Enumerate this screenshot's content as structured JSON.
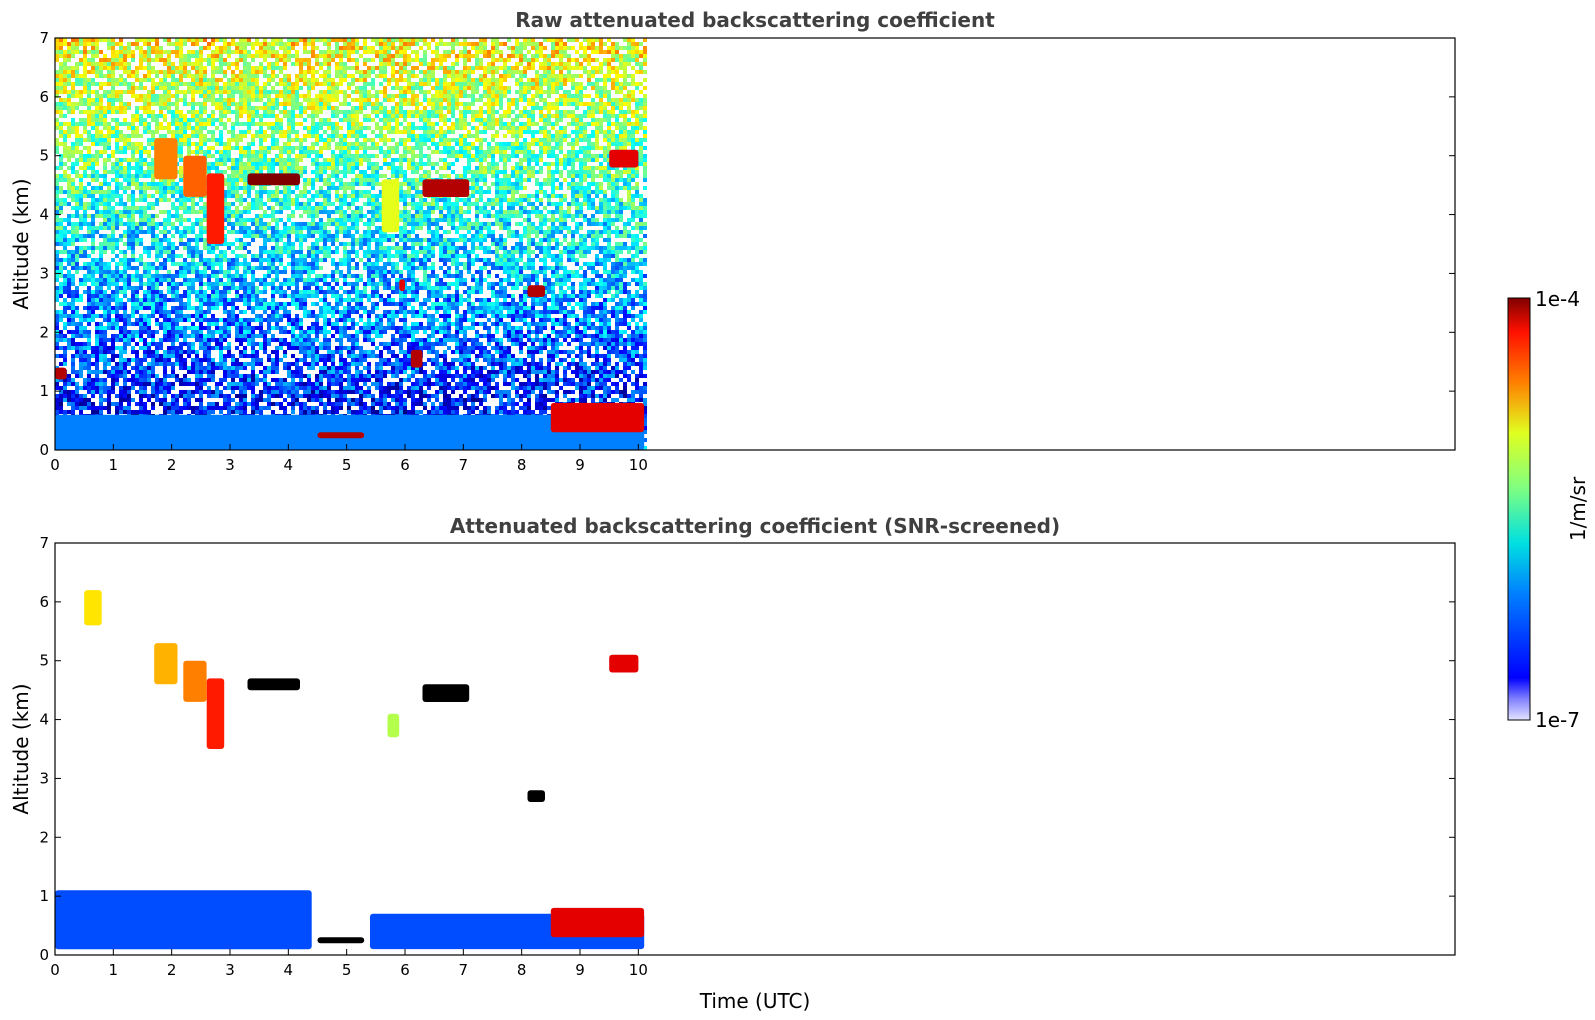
{
  "chart_data": [
    {
      "type": "heatmap",
      "title": "Raw attenuated backscattering coefficient",
      "ylabel": "Altitude (km)",
      "xlabel": "",
      "xlim": [
        0,
        24
      ],
      "ylim": [
        0,
        7
      ],
      "xticks": [
        "0",
        "1",
        "2",
        "3",
        "4",
        "5",
        "6",
        "7",
        "8",
        "9",
        "10"
      ],
      "yticks": [
        "0",
        "1",
        "2",
        "3",
        "4",
        "5",
        "6",
        "7"
      ],
      "data_extent_hours": [
        0,
        10.1
      ],
      "features": [
        {
          "kind": "boundary_layer",
          "x": [
            0,
            10.1
          ],
          "y": [
            0,
            0.6
          ],
          "level": 0.25
        },
        {
          "kind": "cloud",
          "x": [
            1.7,
            2.1
          ],
          "y": [
            4.6,
            5.3
          ],
          "level": 0.75
        },
        {
          "kind": "cloud",
          "x": [
            2.2,
            2.6
          ],
          "y": [
            4.3,
            5.0
          ],
          "level": 0.78
        },
        {
          "kind": "cloud",
          "x": [
            2.6,
            2.9
          ],
          "y": [
            3.5,
            4.7
          ],
          "level": 0.85
        },
        {
          "kind": "cloud",
          "x": [
            3.3,
            4.2
          ],
          "y": [
            4.5,
            4.7
          ],
          "level": 1.0
        },
        {
          "kind": "cloud",
          "x": [
            6.3,
            7.1
          ],
          "y": [
            4.3,
            4.6
          ],
          "level": 0.95
        },
        {
          "kind": "cloud",
          "x": [
            9.5,
            10.0
          ],
          "y": [
            4.8,
            5.1
          ],
          "level": 0.9
        },
        {
          "kind": "cloud",
          "x": [
            8.1,
            8.4
          ],
          "y": [
            2.6,
            2.8
          ],
          "level": 0.95
        },
        {
          "kind": "cloud",
          "x": [
            5.9,
            6.0
          ],
          "y": [
            2.7,
            2.9
          ],
          "level": 0.9
        },
        {
          "kind": "cloud",
          "x": [
            6.1,
            6.3
          ],
          "y": [
            1.4,
            1.7
          ],
          "level": 0.95
        },
        {
          "kind": "cloud",
          "x": [
            0.0,
            0.2
          ],
          "y": [
            1.2,
            1.4
          ],
          "level": 0.95
        },
        {
          "kind": "cloud",
          "x": [
            4.5,
            5.3
          ],
          "y": [
            0.2,
            0.3
          ],
          "level": 0.95
        },
        {
          "kind": "cloud",
          "x": [
            8.5,
            10.1
          ],
          "y": [
            0.3,
            0.8
          ],
          "level": 0.9
        },
        {
          "kind": "virga",
          "x": [
            5.6,
            5.9
          ],
          "y": [
            3.7,
            4.6
          ],
          "level": 0.6
        }
      ]
    },
    {
      "type": "heatmap",
      "title": "Attenuated backscattering coefficient (SNR-screened)",
      "ylabel": "Altitude (km)",
      "xlabel": "Time (UTC)",
      "xlim": [
        0,
        24
      ],
      "ylim": [
        0,
        7
      ],
      "xticks": [
        "0",
        "1",
        "2",
        "3",
        "4",
        "5",
        "6",
        "7",
        "8",
        "9",
        "10"
      ],
      "yticks": [
        "0",
        "1",
        "2",
        "3",
        "4",
        "5",
        "6",
        "7"
      ],
      "data_extent_hours": [
        0,
        10.1
      ],
      "features": [
        {
          "kind": "boundary_layer",
          "x": [
            0,
            4.4
          ],
          "y": [
            0.1,
            1.1
          ],
          "level": 0.2
        },
        {
          "kind": "boundary_layer",
          "x": [
            5.4,
            10.1
          ],
          "y": [
            0.1,
            0.7
          ],
          "level": 0.2
        },
        {
          "kind": "cloud",
          "x": [
            1.7,
            2.1
          ],
          "y": [
            4.6,
            5.3
          ],
          "level": 0.7
        },
        {
          "kind": "cloud",
          "x": [
            2.2,
            2.6
          ],
          "y": [
            4.3,
            5.0
          ],
          "level": 0.75
        },
        {
          "kind": "cloud",
          "x": [
            2.6,
            2.9
          ],
          "y": [
            3.5,
            4.7
          ],
          "level": 0.85
        },
        {
          "kind": "saturated",
          "x": [
            3.3,
            4.2
          ],
          "y": [
            4.5,
            4.7
          ]
        },
        {
          "kind": "saturated",
          "x": [
            6.3,
            7.1
          ],
          "y": [
            4.3,
            4.6
          ]
        },
        {
          "kind": "saturated",
          "x": [
            8.1,
            8.4
          ],
          "y": [
            2.6,
            2.8
          ]
        },
        {
          "kind": "saturated",
          "x": [
            4.5,
            5.3
          ],
          "y": [
            0.2,
            0.3
          ]
        },
        {
          "kind": "cloud",
          "x": [
            0.5,
            0.8
          ],
          "y": [
            5.6,
            6.2
          ],
          "level": 0.65
        },
        {
          "kind": "cloud",
          "x": [
            5.7,
            5.9
          ],
          "y": [
            3.7,
            4.1
          ],
          "level": 0.55
        },
        {
          "kind": "cloud",
          "x": [
            9.5,
            10.0
          ],
          "y": [
            4.8,
            5.1
          ],
          "level": 0.9
        },
        {
          "kind": "cloud",
          "x": [
            8.5,
            10.1
          ],
          "y": [
            0.3,
            0.8
          ],
          "level": 0.9
        }
      ]
    }
  ],
  "colorbar": {
    "label": "1/m/sr",
    "max_label": "1e-4",
    "min_label": "1e-7",
    "colormap": "jet",
    "scale": "log",
    "range": [
      1e-07,
      0.0001
    ]
  },
  "colors": {
    "title_text": "#404040",
    "axis": "#000000",
    "saturated": "#000000"
  }
}
